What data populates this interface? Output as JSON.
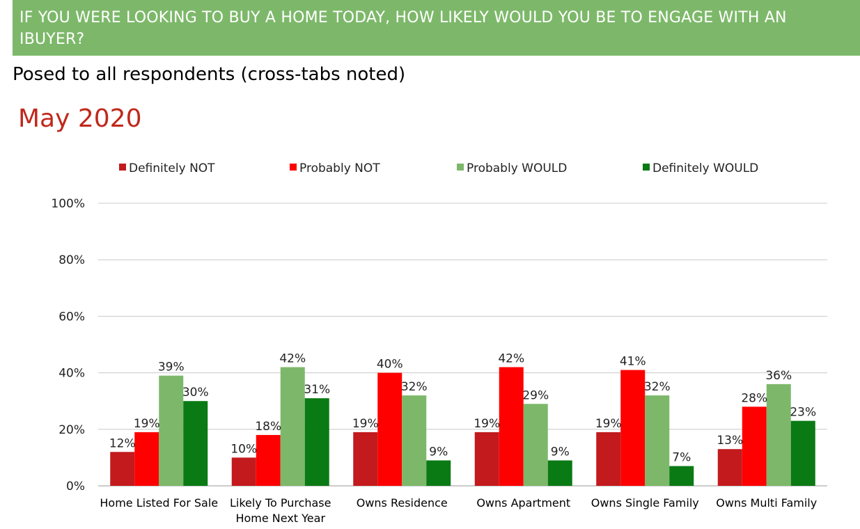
{
  "header": {
    "question": "IF YOU WERE LOOKING TO BUY A HOME TODAY, HOW LIKELY WOULD YOU BE TO ENGAGE WITH AN IBUYER?",
    "subtitle": "Posed to all respondents (cross-tabs noted)",
    "period": "May 2020"
  },
  "colors": {
    "banner": "#7db86a",
    "period_text": "#c0281c"
  },
  "chart_data": {
    "type": "bar",
    "categories": [
      [
        "Home Listed For Sale"
      ],
      [
        "Likely To Purchase",
        "Home Next Year"
      ],
      [
        "Owns Residence"
      ],
      [
        "Owns Apartment"
      ],
      [
        "Owns Single Family"
      ],
      [
        "Owns Multi Family"
      ]
    ],
    "series": [
      {
        "name": "Definitely NOT",
        "color": "#c21a1d",
        "values": [
          12,
          10,
          19,
          19,
          19,
          13
        ]
      },
      {
        "name": "Probably NOT",
        "color": "#ff0000",
        "values": [
          19,
          18,
          40,
          42,
          41,
          28
        ]
      },
      {
        "name": "Probably WOULD",
        "color": "#7db86a",
        "values": [
          39,
          42,
          32,
          29,
          32,
          36
        ]
      },
      {
        "name": "Definitely WOULD",
        "color": "#0a7a14",
        "values": [
          30,
          31,
          9,
          9,
          7,
          23
        ]
      }
    ],
    "yticks": [
      "0%",
      "20%",
      "40%",
      "60%",
      "80%",
      "100%"
    ],
    "ylim": [
      0,
      100
    ],
    "value_suffix": "%",
    "legend_position": "top",
    "grid": true
  }
}
